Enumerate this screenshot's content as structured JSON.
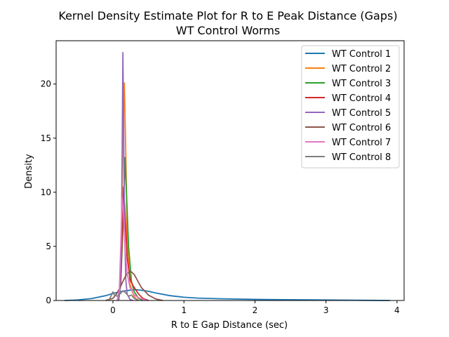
{
  "chart_data": {
    "type": "line",
    "title": "Kernel Density Estimate Plot for R to E Peak Distance (Gaps)",
    "subtitle": "WT Control Worms",
    "xlabel": "R to E Gap Distance (sec)",
    "ylabel": "Density",
    "xlim": [
      -0.8,
      4.1
    ],
    "ylim": [
      0,
      24
    ],
    "xticks": [
      0,
      1,
      2,
      3,
      4
    ],
    "yticks": [
      0,
      5,
      10,
      15,
      20
    ],
    "grid": false,
    "legend_position": "top-right",
    "series": [
      {
        "name": "WT Control 1",
        "color": "#1f77b4",
        "x": [
          -0.68,
          -0.5,
          -0.3,
          -0.1,
          0.0,
          0.1,
          0.2,
          0.3,
          0.4,
          0.5,
          0.6,
          0.8,
          1.0,
          1.2,
          1.5,
          2.0,
          2.5,
          3.0,
          3.5,
          3.9
        ],
        "y": [
          0.0,
          0.05,
          0.18,
          0.45,
          0.65,
          0.8,
          0.92,
          1.0,
          0.95,
          0.85,
          0.7,
          0.45,
          0.3,
          0.22,
          0.16,
          0.1,
          0.07,
          0.05,
          0.02,
          0.0
        ]
      },
      {
        "name": "WT Control 2",
        "color": "#ff7f0e",
        "x": [
          0.06,
          0.1,
          0.12,
          0.14,
          0.16,
          0.18,
          0.2,
          0.24,
          0.3,
          0.36
        ],
        "y": [
          0.0,
          1.0,
          6.0,
          16.0,
          20.1,
          14.0,
          6.0,
          1.5,
          0.3,
          0.0
        ]
      },
      {
        "name": "WT Control 3",
        "color": "#2ca02c",
        "x": [
          0.08,
          0.11,
          0.13,
          0.15,
          0.17,
          0.19,
          0.22,
          0.26,
          0.3,
          0.36,
          0.42
        ],
        "y": [
          0.0,
          1.5,
          5.0,
          8.0,
          13.2,
          10.0,
          5.0,
          1.8,
          0.8,
          0.2,
          0.0
        ]
      },
      {
        "name": "WT Control 4",
        "color": "#d62728",
        "x": [
          0.08,
          0.11,
          0.13,
          0.15,
          0.17,
          0.2,
          0.24,
          0.28,
          0.32,
          0.36,
          0.42,
          0.5
        ],
        "y": [
          0.0,
          2.0,
          6.0,
          10.5,
          8.0,
          4.0,
          2.0,
          1.4,
          1.0,
          0.6,
          0.2,
          0.0
        ]
      },
      {
        "name": "WT Control 5",
        "color": "#9467bd",
        "x": [
          0.08,
          0.1,
          0.12,
          0.13,
          0.14,
          0.15,
          0.16,
          0.18,
          0.2,
          0.24,
          0.28
        ],
        "y": [
          0.0,
          1.0,
          6.0,
          14.0,
          22.9,
          17.0,
          8.0,
          2.0,
          0.6,
          0.1,
          0.0
        ]
      },
      {
        "name": "WT Control 6",
        "color": "#8c564b",
        "x": [
          -0.1,
          0.0,
          0.05,
          0.1,
          0.15,
          0.2,
          0.25,
          0.3,
          0.35,
          0.4,
          0.5,
          0.6,
          0.7
        ],
        "y": [
          0.0,
          0.2,
          0.6,
          1.2,
          1.9,
          2.5,
          2.7,
          2.4,
          1.8,
          1.2,
          0.5,
          0.15,
          0.0
        ]
      },
      {
        "name": "WT Control 7",
        "color": "#e377c2",
        "x": [
          0.06,
          0.09,
          0.11,
          0.13,
          0.15,
          0.17,
          0.2,
          0.24,
          0.3,
          0.38,
          0.48
        ],
        "y": [
          0.0,
          1.0,
          5.0,
          9.5,
          8.0,
          5.0,
          2.5,
          1.2,
          0.5,
          0.2,
          0.0
        ]
      },
      {
        "name": "WT Control 8",
        "color": "#7f7f7f",
        "x": [
          -0.06,
          -0.02,
          0.0,
          0.02,
          0.06,
          0.1,
          0.14,
          0.18,
          0.22,
          0.26,
          0.3,
          0.36
        ],
        "y": [
          0.0,
          0.5,
          0.8,
          0.5,
          0.4,
          0.6,
          0.9,
          0.7,
          0.4,
          0.5,
          0.2,
          0.0
        ]
      }
    ]
  }
}
